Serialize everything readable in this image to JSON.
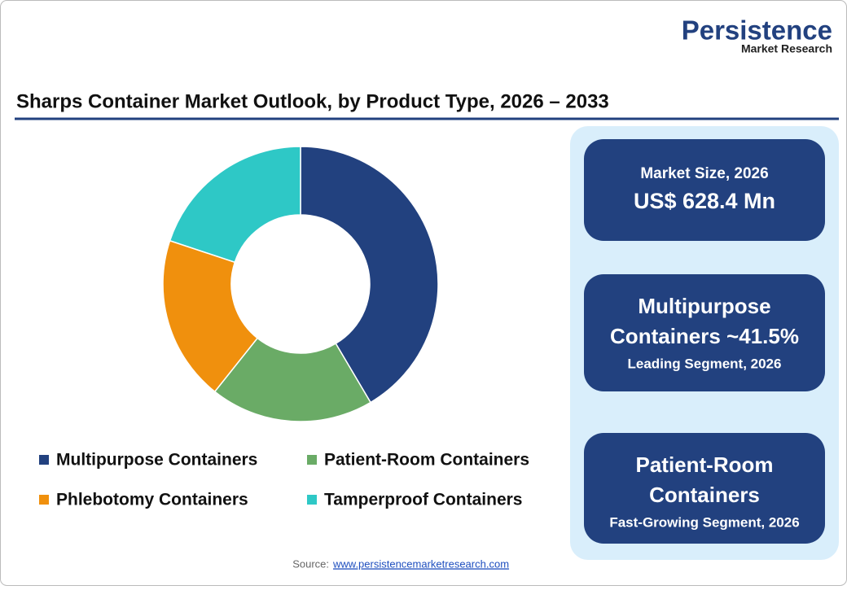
{
  "logo": {
    "name": "Persistence",
    "sub": "Market Research"
  },
  "chart_data": {
    "type": "donut",
    "title": "Sharps Container Market Outlook, by Product Type, 2026 – 2033",
    "categories": [
      "Multipurpose Containers",
      "Patient-Room Containers",
      "Phlebotomy Containers",
      "Tamperproof Containers"
    ],
    "values": [
      41.5,
      19.2,
      19.4,
      19.9
    ],
    "colors": [
      "#22417f",
      "#6aab66",
      "#f0900d",
      "#2ec8c6"
    ]
  },
  "panels": [
    {
      "heading": [
        "Market Size, 2026"
      ],
      "value": "US$ 628.4 Mn"
    },
    {
      "heading": [
        "Multipurpose",
        "Containers ~41.5%"
      ],
      "note": "Leading Segment, 2026"
    },
    {
      "heading": [
        "Patient-Room",
        "Containers"
      ],
      "note": "Fast-Growing Segment, 2026"
    }
  ],
  "source": {
    "label": "Source:",
    "link": "www.persistencemarketresearch.com"
  }
}
